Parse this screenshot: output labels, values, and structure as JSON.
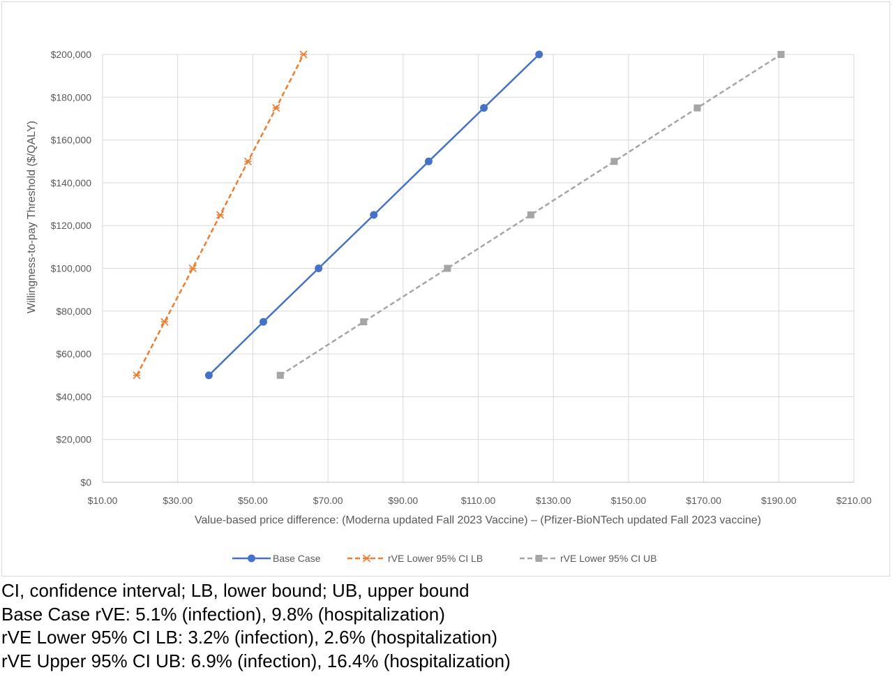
{
  "chart_data": {
    "type": "line",
    "title": "",
    "xlabel": "Value-based price difference: (Moderna updated Fall 2023 Vaccine) – (Pfizer-BioNTech updated Fall 2023 vaccine)",
    "ylabel": "Willingness-to-pay Threshold ($/QALY)",
    "xlim": [
      10,
      210
    ],
    "ylim": [
      0,
      200000
    ],
    "x_ticks": [
      10,
      30,
      50,
      70,
      90,
      110,
      130,
      150,
      170,
      190,
      210
    ],
    "x_tick_labels": [
      "$10.00",
      "$30.00",
      "$50.00",
      "$70.00",
      "$90.00",
      "$110.00",
      "$130.00",
      "$150.00",
      "$170.00",
      "$190.00",
      "$210.00"
    ],
    "y_ticks": [
      0,
      20000,
      40000,
      60000,
      80000,
      100000,
      120000,
      140000,
      160000,
      180000,
      200000
    ],
    "y_tick_labels": [
      "$0",
      "$20,000",
      "$40,000",
      "$60,000",
      "$80,000",
      "$100,000",
      "$120,000",
      "$140,000",
      "$160,000",
      "$180,000",
      "$200,000"
    ],
    "grid": true,
    "legend_position": "bottom",
    "series": [
      {
        "name": "Base Case",
        "color": "#4472c4",
        "dash": "solid",
        "marker": "circle",
        "points": [
          [
            38.3,
            50000
          ],
          [
            52.8,
            75000
          ],
          [
            67.5,
            100000
          ],
          [
            82.2,
            125000
          ],
          [
            96.8,
            150000
          ],
          [
            111.5,
            175000
          ],
          [
            126.2,
            200000
          ]
        ]
      },
      {
        "name": "rVE Lower 95% CI LB",
        "color": "#ed7d31",
        "dash": "dashed",
        "marker": "x-star",
        "points": [
          [
            19.1,
            50000
          ],
          [
            26.5,
            75000
          ],
          [
            34.0,
            100000
          ],
          [
            41.3,
            125000
          ],
          [
            48.7,
            150000
          ],
          [
            56.2,
            175000
          ],
          [
            63.5,
            200000
          ]
        ]
      },
      {
        "name": "rVE Lower 95% CI UB",
        "color": "#a5a5a5",
        "dash": "dashed",
        "marker": "square",
        "points": [
          [
            57.3,
            50000
          ],
          [
            79.5,
            75000
          ],
          [
            101.8,
            100000
          ],
          [
            124.0,
            125000
          ],
          [
            146.2,
            150000
          ],
          [
            168.3,
            175000
          ],
          [
            190.6,
            200000
          ]
        ]
      }
    ]
  },
  "footnotes": [
    "CI, confidence interval; LB, lower bound; UB, upper bound",
    "Base Case rVE: 5.1% (infection), 9.8% (hospitalization)",
    "rVE Lower 95% CI LB: 3.2% (infection), 2.6% (hospitalization)",
    "rVE Upper 95% CI UB: 6.9% (infection), 16.4% (hospitalization)"
  ]
}
